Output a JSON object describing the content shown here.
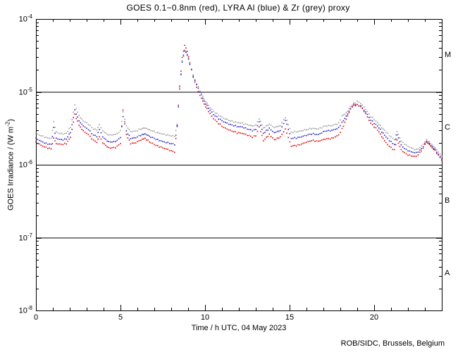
{
  "title": "GOES 0.1−0.8nm (red), LYRA Al (blue) & Zr (grey) proxy",
  "footer": "ROB/SIDC, Brussels, Belgium",
  "axes": {
    "x": {
      "label": "Time / h UTC, 04 May 2023",
      "min": 0,
      "max": 24,
      "major_ticks": [
        0,
        5,
        10,
        15,
        20
      ],
      "minor_step": 1
    },
    "y": {
      "label_pre": "GOES Irradiance / (W m",
      "label_sup_exp": "-2",
      "label_post": ")",
      "decade_exponents": [
        -4,
        -5,
        -6,
        -7,
        -8
      ],
      "min": 1e-08,
      "max": 0.0001
    }
  },
  "flare_classes": [
    {
      "label": "M",
      "upper_exp": -4,
      "lower_exp": -5
    },
    {
      "label": "C",
      "upper_exp": -5,
      "lower_exp": -6
    },
    {
      "label": "B",
      "upper_exp": -6,
      "lower_exp": -7
    },
    {
      "label": "A",
      "upper_exp": -7,
      "lower_exp": -8
    }
  ],
  "class_boundary_lines": [
    1e-05,
    1e-06,
    1e-07
  ],
  "colors": {
    "axis": "#000000",
    "background": "#ffffff"
  },
  "chart_data": {
    "type": "scatter",
    "title": "GOES 0.1-0.8nm (red), LYRA Al (blue) & Zr (grey) proxy",
    "xlabel": "Time / h UTC, 04 May 2023",
    "ylabel": "GOES Irradiance / (W m^-2)",
    "xlim": [
      0,
      24
    ],
    "ylim": [
      1e-08,
      0.0001
    ],
    "yscale": "log",
    "grid": false,
    "legend_position": "in-title",
    "series": [
      {
        "name": "GOES 0.1-0.8nm",
        "color": "#dd0000",
        "column": 1
      },
      {
        "name": "LYRA Al proxy",
        "color": "#2222cc",
        "column": 2
      },
      {
        "name": "LYRA Zr proxy",
        "color": "#999999",
        "column": 3
      }
    ],
    "samples_format": [
      "hour_utc",
      "goes_red_Wm2",
      "lyra_al_blue_Wm2",
      "lyra_zr_grey_Wm2"
    ],
    "samples": [
      [
        0.0,
        2.05e-06,
        2.3e-06,
        2.7e-06
      ],
      [
        0.3,
        1.85e-06,
        2.1e-06,
        2.5e-06
      ],
      [
        0.6,
        1.72e-06,
        1.95e-06,
        2.35e-06
      ],
      [
        0.9,
        1.65e-06,
        1.9e-06,
        2.3e-06
      ],
      [
        1.05,
        2.3e-06,
        3.2e-06,
        3.85e-06
      ],
      [
        1.2,
        1.95e-06,
        2.3e-06,
        2.8e-06
      ],
      [
        1.5,
        1.9e-06,
        2.2e-06,
        2.65e-06
      ],
      [
        1.8,
        1.95e-06,
        2.25e-06,
        2.7e-06
      ],
      [
        2.05,
        2.4e-06,
        2.8e-06,
        3.3e-06
      ],
      [
        2.3,
        4.9e-06,
        5.6e-06,
        6.6e-06
      ],
      [
        2.55,
        3.5e-06,
        4e-06,
        4.7e-06
      ],
      [
        2.8,
        2.9e-06,
        3.4e-06,
        4e-06
      ],
      [
        3.1,
        2.6e-06,
        3.05e-06,
        3.6e-06
      ],
      [
        3.4,
        2.15e-06,
        2.55e-06,
        3.1e-06
      ],
      [
        3.6,
        2.05e-06,
        2.45e-06,
        3e-06
      ],
      [
        3.75,
        2.45e-06,
        3.1e-06,
        3.6e-06
      ],
      [
        3.95,
        2e-06,
        2.4e-06,
        2.9e-06
      ],
      [
        4.3,
        1.7e-06,
        2.05e-06,
        2.55e-06
      ],
      [
        4.7,
        1.72e-06,
        2.08e-06,
        2.6e-06
      ],
      [
        5.0,
        1.95e-06,
        2.35e-06,
        2.9e-06
      ],
      [
        5.15,
        5.7e-06,
        4.6e-06,
        5.3e-06
      ],
      [
        5.35,
        2.6e-06,
        2.9e-06,
        3.4e-06
      ],
      [
        5.6,
        1.95e-06,
        2.3e-06,
        2.85e-06
      ],
      [
        5.9,
        2e-06,
        2.35e-06,
        2.9e-06
      ],
      [
        6.2,
        2.2e-06,
        2.55e-06,
        3.1e-06
      ],
      [
        6.45,
        2.3e-06,
        2.65e-06,
        3.2e-06
      ],
      [
        6.8,
        2e-06,
        2.4e-06,
        2.95e-06
      ],
      [
        7.2,
        1.8e-06,
        2.2e-06,
        2.75e-06
      ],
      [
        7.6,
        1.68e-06,
        2.05e-06,
        2.6e-06
      ],
      [
        8.0,
        1.55e-06,
        1.95e-06,
        2.5e-06
      ],
      [
        8.2,
        1.5e-06,
        1.9e-06,
        2.45e-06
      ],
      [
        8.35,
        3.5e-06,
        3.4e-06,
        3.6e-06
      ],
      [
        8.5,
        1.2e-05,
        1.1e-05,
        1.15e-05
      ],
      [
        8.65,
        3e-05,
        2.6e-05,
        2.7e-05
      ],
      [
        8.8,
        4.4e-05,
        3.7e-05,
        3.8e-05
      ],
      [
        8.95,
        3.6e-05,
        3.2e-05,
        3.3e-05
      ],
      [
        9.1,
        2.5e-05,
        2.4e-05,
        2.5e-05
      ],
      [
        9.3,
        1.6e-05,
        1.65e-05,
        1.7e-05
      ],
      [
        9.5,
        1.15e-05,
        1.25e-05,
        1.3e-05
      ],
      [
        9.7,
        9e-06,
        1e-05,
        1.05e-05
      ],
      [
        9.95,
        6.8e-06,
        7.4e-06,
        7.9e-06
      ],
      [
        10.2,
        5.4e-06,
        6e-06,
        6.5e-06
      ],
      [
        10.5,
        4.3e-06,
        4.9e-06,
        5.4e-06
      ],
      [
        10.8,
        3.7e-06,
        4.3e-06,
        4.8e-06
      ],
      [
        11.1,
        3.25e-06,
        3.9e-06,
        4.35e-06
      ],
      [
        11.5,
        2.95e-06,
        3.55e-06,
        4e-06
      ],
      [
        11.9,
        2.75e-06,
        3.35e-06,
        3.8e-06
      ],
      [
        12.2,
        2.7e-06,
        3.3e-06,
        3.7e-06
      ],
      [
        12.5,
        2.55e-06,
        3.1e-06,
        3.55e-06
      ],
      [
        12.8,
        2.4e-06,
        2.95e-06,
        3.4e-06
      ],
      [
        13.0,
        2.5e-06,
        3.05e-06,
        3.5e-06
      ],
      [
        13.2,
        3.3e-06,
        3.9e-06,
        4.3e-06
      ],
      [
        13.45,
        2.15e-06,
        2.7e-06,
        3.2e-06
      ],
      [
        13.8,
        2.6e-06,
        3.15e-06,
        3.6e-06
      ],
      [
        14.1,
        2.2e-06,
        2.75e-06,
        3.25e-06
      ],
      [
        14.45,
        2.4e-06,
        2.95e-06,
        3.45e-06
      ],
      [
        14.75,
        3.1e-06,
        4.1e-06,
        4.5e-06
      ],
      [
        15.1,
        1.8e-06,
        2.3e-06,
        2.8e-06
      ],
      [
        15.5,
        1.85e-06,
        2.35e-06,
        2.85e-06
      ],
      [
        15.9,
        2e-06,
        2.5e-06,
        3e-06
      ],
      [
        16.3,
        2.15e-06,
        2.65e-06,
        3.15e-06
      ],
      [
        16.7,
        2.1e-06,
        2.6e-06,
        3.1e-06
      ],
      [
        17.1,
        2.25e-06,
        2.9e-06,
        3.4e-06
      ],
      [
        17.5,
        2.3e-06,
        2.95e-06,
        3.45e-06
      ],
      [
        17.9,
        2.55e-06,
        3.2e-06,
        3.7e-06
      ],
      [
        18.1,
        3.1e-06,
        3.8e-06,
        4.7e-06
      ],
      [
        18.35,
        4.2e-06,
        4.6e-06,
        5.1e-06
      ],
      [
        18.6,
        5.8e-06,
        5.9e-06,
        6.3e-06
      ],
      [
        18.8,
        6.8e-06,
        6.5e-06,
        6.9e-06
      ],
      [
        19.0,
        6.6e-06,
        6.6e-06,
        7.4e-06
      ],
      [
        19.2,
        6.4e-06,
        6.3e-06,
        7e-06
      ],
      [
        19.5,
        5e-06,
        5.3e-06,
        5.8e-06
      ],
      [
        19.8,
        3.7e-06,
        4.1e-06,
        4.6e-06
      ],
      [
        20.2,
        3e-06,
        3.4e-06,
        3.8e-06
      ],
      [
        20.45,
        2.45e-06,
        2.85e-06,
        3.25e-06
      ],
      [
        20.7,
        2e-06,
        2.4e-06,
        2.8e-06
      ],
      [
        21.0,
        1.7e-06,
        2.05e-06,
        2.4e-06
      ],
      [
        21.2,
        1.6e-06,
        1.9e-06,
        2.2e-06
      ],
      [
        21.35,
        2.2e-06,
        2.6e-06,
        2.9e-06
      ],
      [
        21.6,
        1.6e-06,
        1.85e-06,
        2.1e-06
      ],
      [
        21.9,
        1.4e-06,
        1.6e-06,
        1.85e-06
      ],
      [
        22.2,
        1.32e-06,
        1.5e-06,
        1.7e-06
      ],
      [
        22.5,
        1.3e-06,
        1.45e-06,
        1.6e-06
      ],
      [
        22.8,
        1.55e-06,
        1.65e-06,
        1.8e-06
      ],
      [
        23.1,
        2.05e-06,
        2.1e-06,
        2.2e-06
      ],
      [
        23.35,
        1.8e-06,
        1.85e-06,
        1.95e-06
      ],
      [
        23.6,
        1.55e-06,
        1.6e-06,
        1.7e-06
      ],
      [
        23.8,
        1.35e-06,
        1.4e-06,
        1.5e-06
      ],
      [
        24.0,
        1.15e-06,
        1.2e-06,
        1.3e-06
      ]
    ]
  }
}
